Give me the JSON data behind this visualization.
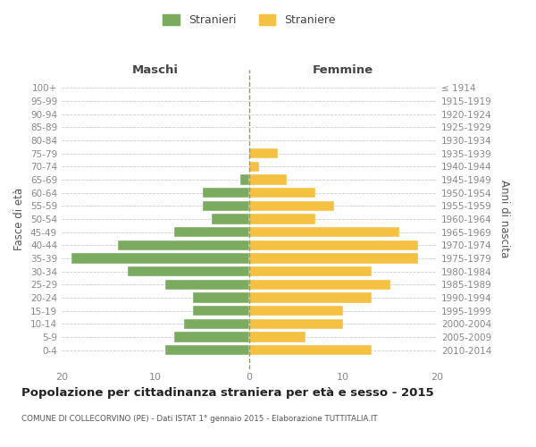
{
  "age_groups": [
    "100+",
    "95-99",
    "90-94",
    "85-89",
    "80-84",
    "75-79",
    "70-74",
    "65-69",
    "60-64",
    "55-59",
    "50-54",
    "45-49",
    "40-44",
    "35-39",
    "30-34",
    "25-29",
    "20-24",
    "15-19",
    "10-14",
    "5-9",
    "0-4"
  ],
  "birth_years": [
    "≤ 1914",
    "1915-1919",
    "1920-1924",
    "1925-1929",
    "1930-1934",
    "1935-1939",
    "1940-1944",
    "1945-1949",
    "1950-1954",
    "1955-1959",
    "1960-1964",
    "1965-1969",
    "1970-1974",
    "1975-1979",
    "1980-1984",
    "1985-1989",
    "1990-1994",
    "1995-1999",
    "2000-2004",
    "2005-2009",
    "2010-2014"
  ],
  "males": [
    0,
    0,
    0,
    0,
    0,
    0,
    0,
    1,
    5,
    5,
    4,
    8,
    14,
    19,
    13,
    9,
    6,
    6,
    7,
    8,
    9
  ],
  "females": [
    0,
    0,
    0,
    0,
    0,
    3,
    1,
    4,
    7,
    9,
    7,
    16,
    18,
    18,
    13,
    15,
    13,
    10,
    10,
    6,
    13
  ],
  "male_color": "#7aab5e",
  "female_color": "#f5c142",
  "male_label": "Stranieri",
  "female_label": "Straniere",
  "xlabel_left": "Maschi",
  "xlabel_right": "Femmine",
  "ylabel_left": "Fasce di età",
  "ylabel_right": "Anni di nascita",
  "title": "Popolazione per cittadinanza straniera per età e sesso - 2015",
  "subtitle": "COMUNE DI COLLECORVINO (PE) - Dati ISTAT 1° gennaio 2015 - Elaborazione TUTTITALIA.IT",
  "xlim": 20,
  "grid_color": "#cccccc",
  "background_color": "#ffffff",
  "axis_label_color": "#555555",
  "tick_color": "#888888",
  "dashed_line_color": "#999966"
}
